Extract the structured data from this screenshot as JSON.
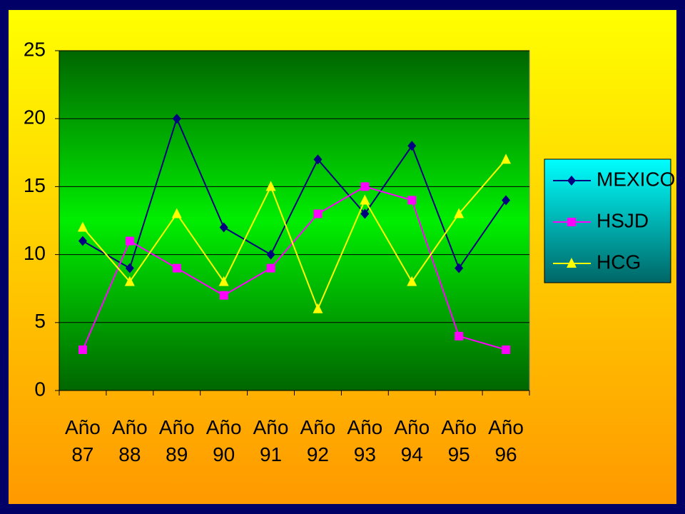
{
  "chart_data": {
    "type": "line",
    "categories": [
      "Año 87",
      "Año 88",
      "Año 89",
      "Año 90",
      "Año 91",
      "Año 92",
      "Año 93",
      "Año 94",
      "Año 95",
      "Año 96"
    ],
    "series": [
      {
        "name": "MEXICO",
        "color": "#000080",
        "marker": "diamond",
        "values": [
          11,
          9,
          20,
          12,
          10,
          17,
          13,
          18,
          9,
          14
        ]
      },
      {
        "name": "HSJD",
        "color": "#ff00ff",
        "marker": "square",
        "values": [
          3,
          11,
          9,
          7,
          9,
          13,
          15,
          14,
          4,
          3
        ]
      },
      {
        "name": "HCG",
        "color": "#ffff00",
        "marker": "triangle",
        "values": [
          12,
          8,
          13,
          8,
          15,
          6,
          14,
          8,
          13,
          17
        ]
      }
    ],
    "ylim": [
      0,
      25
    ],
    "yticks": [
      0,
      5,
      10,
      15,
      20,
      25
    ],
    "grid": true,
    "legend": "right"
  }
}
